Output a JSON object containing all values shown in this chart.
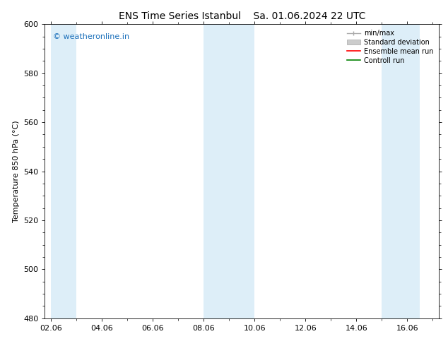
{
  "title_left": "ENS Time Series Istanbul",
  "title_right": "Sa. 01.06.2024 22 UTC",
  "ylabel": "Temperature 850 hPa (°C)",
  "ylim": [
    480,
    600
  ],
  "yticks": [
    480,
    500,
    520,
    540,
    560,
    580,
    600
  ],
  "xlim": [
    1.75,
    17.25
  ],
  "xtick_labels": [
    "02.06",
    "04.06",
    "06.06",
    "08.06",
    "10.06",
    "12.06",
    "14.06",
    "16.06"
  ],
  "xtick_positions": [
    2,
    4,
    6,
    8,
    10,
    12,
    14,
    16
  ],
  "shaded_bands": [
    {
      "x_start": 2.0,
      "x_end": 3.0
    },
    {
      "x_start": 8.0,
      "x_end": 10.0
    },
    {
      "x_start": 15.0,
      "x_end": 16.5
    }
  ],
  "shaded_color": "#ddeef8",
  "watermark_text": "© weatheronline.in",
  "watermark_color": "#1a6fba",
  "legend_labels": [
    "min/max",
    "Standard deviation",
    "Ensemble mean run",
    "Controll run"
  ],
  "legend_colors": [
    "#aaaaaa",
    "#cccccc",
    "#ff0000",
    "#008000"
  ],
  "bg_color": "#ffffff",
  "border_color": "#000000",
  "tick_color": "#000000",
  "font_size": 8,
  "title_font_size": 10
}
